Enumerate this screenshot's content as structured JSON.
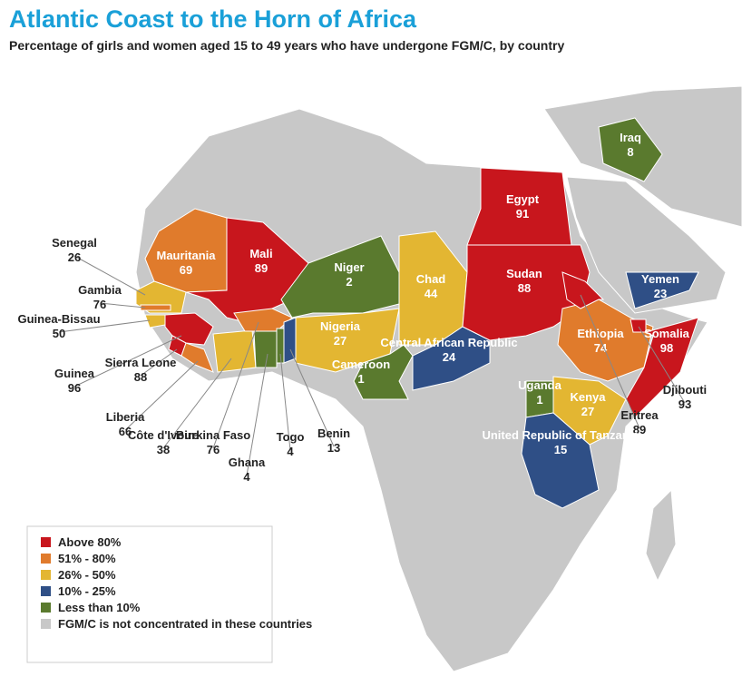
{
  "title": "Atlantic Coast to the Horn of Africa",
  "subtitle": "Percentage of girls and women aged 15 to 49 years who have undergone FGM/C, by country",
  "countries": [
    {
      "name": "Mauritania",
      "value": 69,
      "color": "#e07b2c"
    },
    {
      "name": "Mali",
      "value": 89,
      "color": "#c8161d"
    },
    {
      "name": "Senegal",
      "value": 26,
      "color": "#e3b632"
    },
    {
      "name": "Gambia",
      "value": 76,
      "color": "#e07b2c"
    },
    {
      "name": "Guinea-Bissau",
      "value": 50,
      "color": "#e3b632"
    },
    {
      "name": "Guinea",
      "value": 96,
      "color": "#c8161d"
    },
    {
      "name": "Sierra Leone",
      "value": 88,
      "color": "#c8161d"
    },
    {
      "name": "Liberia",
      "value": 66,
      "color": "#e07b2c"
    },
    {
      "name": "Côte d'Ivoire",
      "value": 38,
      "color": "#e3b632"
    },
    {
      "name": "Burkina Faso",
      "value": 76,
      "color": "#e07b2c"
    },
    {
      "name": "Ghana",
      "value": 4,
      "color": "#5a7a2e"
    },
    {
      "name": "Togo",
      "value": 4,
      "color": "#5a7a2e"
    },
    {
      "name": "Benin",
      "value": 13,
      "color": "#2f4f86"
    },
    {
      "name": "Niger",
      "value": 2,
      "color": "#5a7a2e"
    },
    {
      "name": "Nigeria",
      "value": 27,
      "color": "#e3b632"
    },
    {
      "name": "Chad",
      "value": 44,
      "color": "#e3b632"
    },
    {
      "name": "Cameroon",
      "value": 1,
      "color": "#5a7a2e"
    },
    {
      "name": "Central African Republic",
      "value": 24,
      "color": "#2f4f86"
    },
    {
      "name": "Sudan",
      "value": 88,
      "color": "#c8161d"
    },
    {
      "name": "Egypt",
      "value": 91,
      "color": "#c8161d"
    },
    {
      "name": "Ethiopia",
      "value": 74,
      "color": "#e07b2c"
    },
    {
      "name": "Eritrea",
      "value": 89,
      "color": "#c8161d"
    },
    {
      "name": "Djibouti",
      "value": 93,
      "color": "#c8161d"
    },
    {
      "name": "Somalia",
      "value": 98,
      "color": "#c8161d"
    },
    {
      "name": "Uganda",
      "value": 1,
      "color": "#5a7a2e"
    },
    {
      "name": "Kenya",
      "value": 27,
      "color": "#e3b632"
    },
    {
      "name": "United Republic of Tanzania",
      "value": 15,
      "color": "#2f4f86"
    },
    {
      "name": "Yemen",
      "value": 23,
      "color": "#2f4f86"
    },
    {
      "name": "Iraq",
      "value": 8,
      "color": "#5a7a2e"
    }
  ],
  "legend": [
    {
      "label": "Above 80%",
      "color": "#c8161d"
    },
    {
      "label": "51% - 80%",
      "color": "#e07b2c"
    },
    {
      "label": "26% - 50%",
      "color": "#e3b632"
    },
    {
      "label": "10% - 25%",
      "color": "#2f4f86"
    },
    {
      "label": "Less than 10%",
      "color": "#5a7a2e"
    },
    {
      "label": "FGM/C is not concentrated in these countries",
      "color": "#c8c8c8"
    }
  ]
}
